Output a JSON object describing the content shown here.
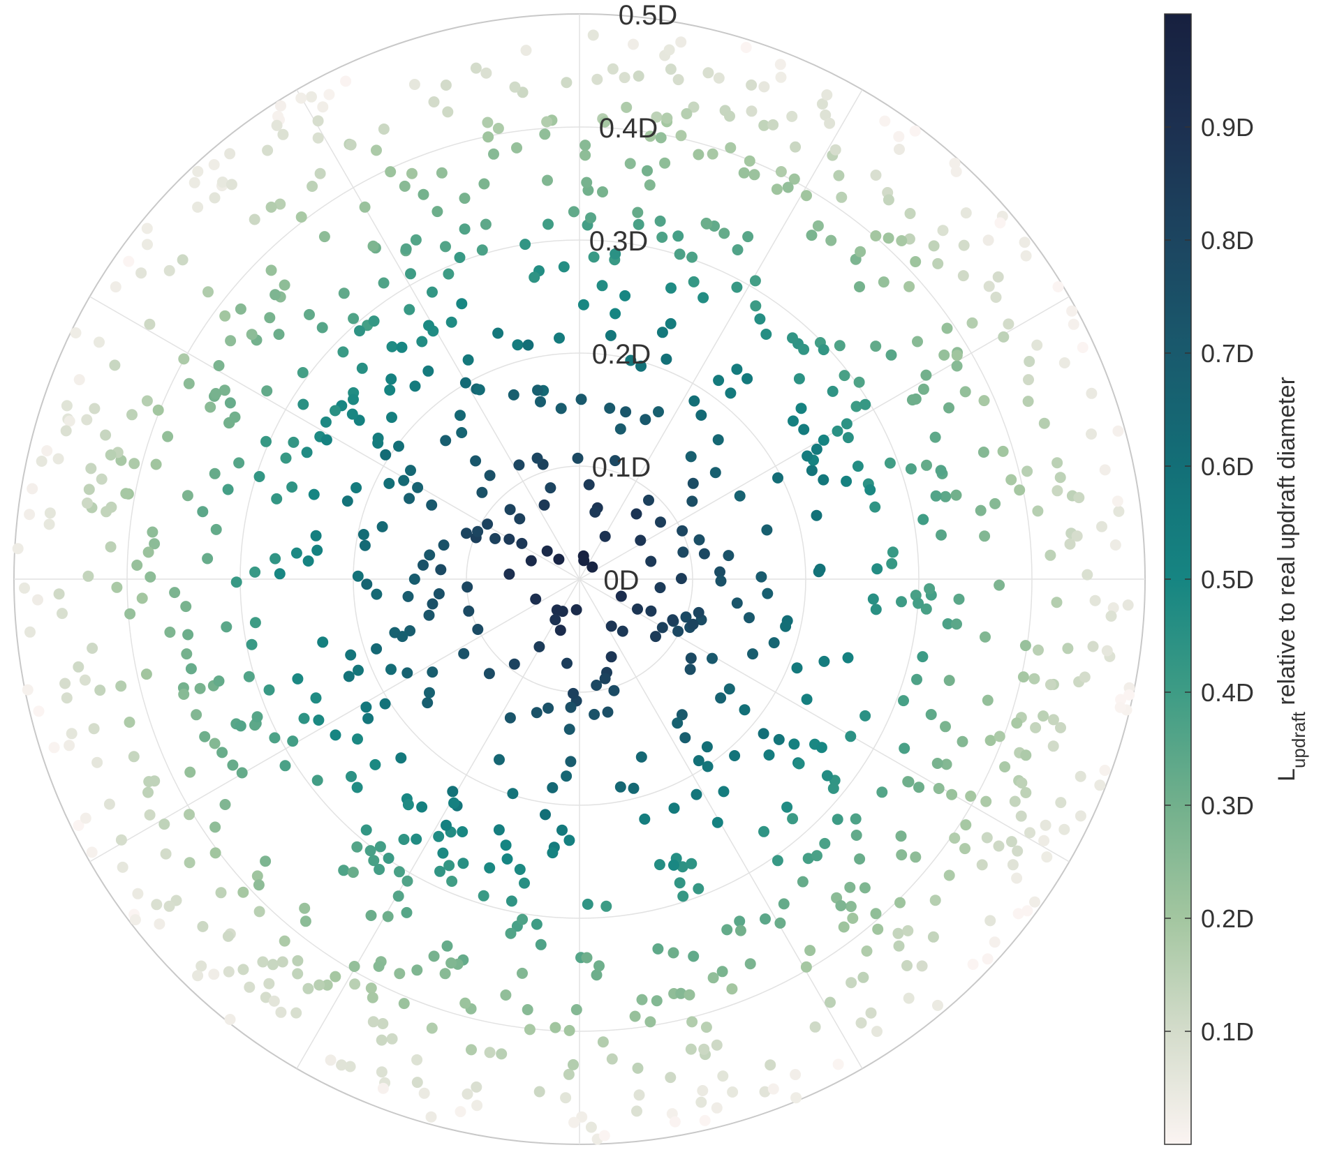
{
  "chart_data": {
    "type": "scatter",
    "projection": "polar",
    "title": "",
    "grid": true,
    "radial_axis": {
      "range": [
        0,
        0.5
      ],
      "unit": "D",
      "tick_values": [
        0,
        0.1,
        0.2,
        0.3,
        0.4,
        0.5
      ],
      "tick_labels": [
        "0D",
        "0.1D",
        "0.2D",
        "0.3D",
        "0.4D",
        "0.5D"
      ]
    },
    "angular_axis": {
      "gridline_angles_deg": [
        0,
        30,
        60,
        90,
        120,
        150,
        180,
        210,
        240,
        270,
        300,
        330
      ],
      "tick_labels": []
    },
    "colorbar": {
      "label_main": "L",
      "label_sub": "updraft",
      "label_rest": " relative to real updraft diameter",
      "range": [
        0,
        1
      ],
      "tick_values": [
        0.1,
        0.2,
        0.3,
        0.4,
        0.5,
        0.6,
        0.7,
        0.8,
        0.9
      ],
      "tick_labels": [
        "0.1D",
        "0.2D",
        "0.3D",
        "0.4D",
        "0.5D",
        "0.6D",
        "0.7D",
        "0.8D",
        "0.9D"
      ],
      "colormap": [
        "#fbf4f2",
        "#d4dccb",
        "#a3c6a0",
        "#72b08c",
        "#3e9c85",
        "#168582",
        "#136f77",
        "#195a6d",
        "#1c4560",
        "#1c3050",
        "#17203f"
      ]
    },
    "marker_colors": {
      "near": "#17203f",
      "mid": "#168582",
      "far": "#ece7df"
    },
    "series": [
      {
        "type": "scatter",
        "generation": "1100 points, r = 0.5D·sqrt(u), roughly uniform over the disk",
        "value_rule": "L = 1 − 2r/D (color)",
        "count": 1100
      }
    ]
  }
}
